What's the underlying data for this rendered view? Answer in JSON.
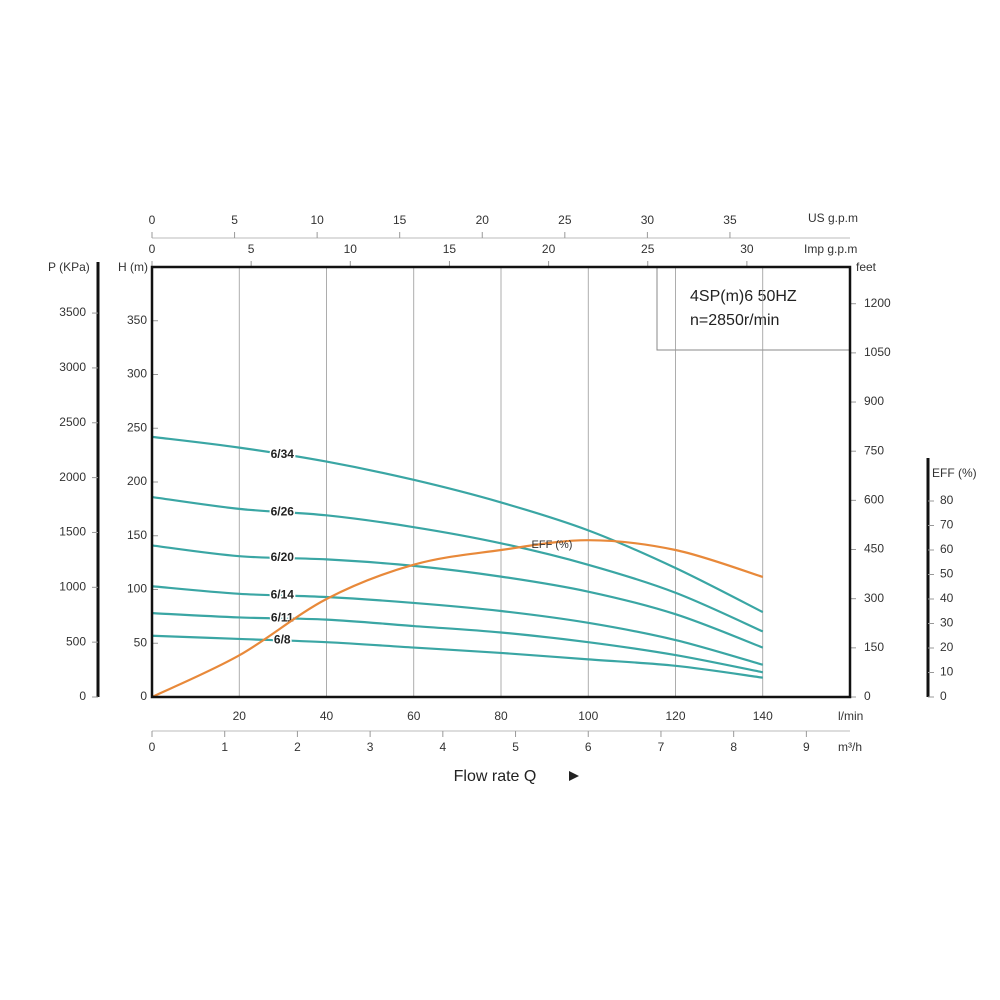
{
  "chart_data": {
    "type": "line",
    "title": "4SP(m)6  50HZ",
    "subtitle": "n=2850r/min",
    "x_label": "l/min",
    "x_title": "Flow rate Q",
    "xlim": [
      0,
      160
    ],
    "xticks": [
      20,
      40,
      60,
      80,
      100,
      120,
      140
    ],
    "grid": true,
    "x": [
      0,
      20,
      40,
      60,
      80,
      100,
      120,
      140
    ],
    "y_label": "H (m)",
    "ylim": [
      0,
      400
    ],
    "yticks": [
      0,
      50,
      100,
      150,
      200,
      250,
      300,
      350
    ],
    "y2_label": "EFF (%)",
    "y2lim": [
      0,
      100
    ],
    "y2ticks": [
      0,
      10,
      20,
      30,
      40,
      50,
      60,
      70,
      80
    ],
    "series": [
      {
        "name": "6/34",
        "color": "#3aa6a4",
        "values": [
          242,
          232,
          219,
          202,
          181,
          155,
          120,
          79
        ]
      },
      {
        "name": "6/26",
        "color": "#3aa6a4",
        "values": [
          186,
          175,
          169,
          158,
          143,
          123,
          97,
          61
        ]
      },
      {
        "name": "6/20",
        "color": "#3aa6a4",
        "values": [
          141,
          131,
          128,
          122,
          112,
          98,
          77,
          46
        ]
      },
      {
        "name": "6/14",
        "color": "#3aa6a4",
        "values": [
          103,
          96,
          93,
          87.5,
          80,
          69,
          53,
          30
        ]
      },
      {
        "name": "6/11",
        "color": "#3aa6a4",
        "values": [
          78,
          74,
          72,
          66,
          60,
          51,
          39,
          23
        ]
      },
      {
        "name": "6/8",
        "color": "#3aa6a4",
        "values": [
          57,
          54,
          51,
          46,
          41,
          35,
          29,
          18
        ]
      },
      {
        "name": "EFF (%)",
        "color": "#e8893a",
        "axis": "y2",
        "values": [
          0,
          17,
          40,
          54,
          60,
          64,
          60,
          49
        ]
      }
    ],
    "pressure_axis": {
      "label": "P (KPa)",
      "lim": [
        0,
        3920
      ],
      "ticks": [
        0,
        500,
        1000,
        1500,
        2000,
        2500,
        3000,
        3500
      ]
    },
    "feet_axis": {
      "label": "feet",
      "lim": [
        0,
        1312
      ],
      "ticks": [
        0,
        150,
        300,
        450,
        600,
        750,
        900,
        1050,
        1200
      ]
    },
    "us_gpm_axis": {
      "label": "US g.p.m",
      "lim": [
        0,
        42.27
      ],
      "ticks": [
        0,
        5,
        10,
        15,
        20,
        25,
        30,
        35
      ]
    },
    "imp_gpm_axis": {
      "label": "Imp g.p.m",
      "lim": [
        0,
        35.2
      ],
      "ticks": [
        0,
        5,
        10,
        15,
        20,
        25,
        30
      ]
    },
    "m3h_axis": {
      "label": "m³/h",
      "lim": [
        0,
        9.6
      ],
      "ticks": [
        0,
        1,
        2,
        3,
        4,
        5,
        6,
        7,
        8,
        9
      ]
    }
  }
}
